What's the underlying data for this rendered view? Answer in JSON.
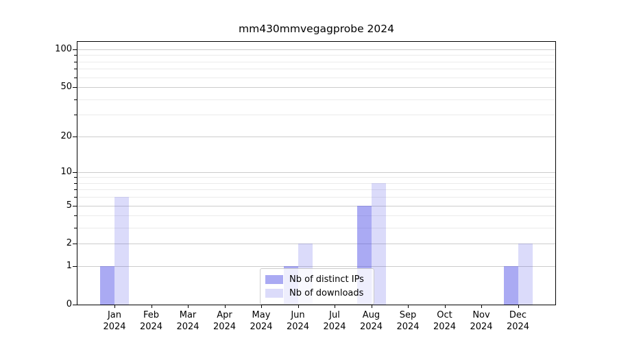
{
  "chart_data": {
    "type": "bar",
    "title": "mm430mmvegagprobe 2024",
    "categories": [
      "Jan 2024",
      "Feb 2024",
      "Mar 2024",
      "Apr 2024",
      "May 2024",
      "Jun 2024",
      "Jul 2024",
      "Aug 2024",
      "Sep 2024",
      "Oct 2024",
      "Nov 2024",
      "Dec 2024"
    ],
    "series": [
      {
        "name": "Nb of distinct IPs",
        "color": "rgba(75,75,230,0.47)",
        "solid_color": "#a8a8f6",
        "values": [
          1,
          0,
          0,
          0,
          0,
          1,
          0,
          5,
          0,
          0,
          0,
          1
        ]
      },
      {
        "name": "Nb of downloads",
        "color": "rgba(75,75,230,0.20)",
        "solid_color": "#dcdcf9",
        "values": [
          6,
          0,
          0,
          0,
          0,
          2,
          0,
          8,
          0,
          0,
          0,
          2
        ]
      }
    ],
    "xlabel": "",
    "ylabel": "",
    "yscale": "log1p",
    "ylim": [
      0,
      114
    ],
    "yticks": [
      0,
      1,
      2,
      5,
      10,
      20,
      50,
      100
    ],
    "ytick_labels": [
      "0",
      "1",
      "2",
      "5",
      "10",
      "20",
      "50",
      "100"
    ],
    "minor_yticks": [
      3,
      4,
      6,
      7,
      8,
      9,
      30,
      40,
      60,
      70,
      80,
      90
    ],
    "grid": "horizontal-major-and-minor",
    "legend_position": "bottom-center"
  },
  "colors": {
    "major_grid": "#cccccc",
    "minor_grid": "#ebebeb",
    "axis": "#000000",
    "legend_border": "#cccccc",
    "background": "#ffffff"
  }
}
